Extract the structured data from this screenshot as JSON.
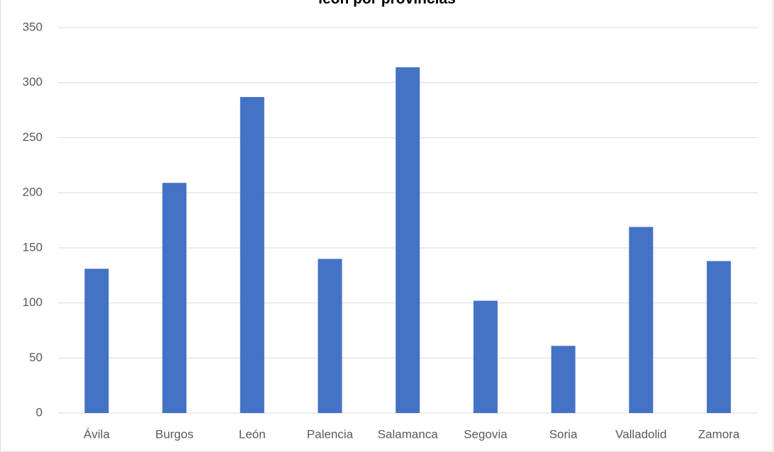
{
  "chart_data": {
    "type": "bar",
    "title": "león por provincias",
    "categories": [
      "Ávila",
      "Burgos",
      "León",
      "Palencia",
      "Salamanca",
      "Segovia",
      "Soria",
      "Valladolid",
      "Zamora"
    ],
    "values": [
      131,
      209,
      287,
      140,
      314,
      102,
      61,
      169,
      138
    ],
    "color": "#4472c4",
    "ylim": [
      0,
      350
    ],
    "yticks": [
      0,
      50,
      100,
      150,
      200,
      250,
      300,
      350
    ],
    "grid": true
  }
}
